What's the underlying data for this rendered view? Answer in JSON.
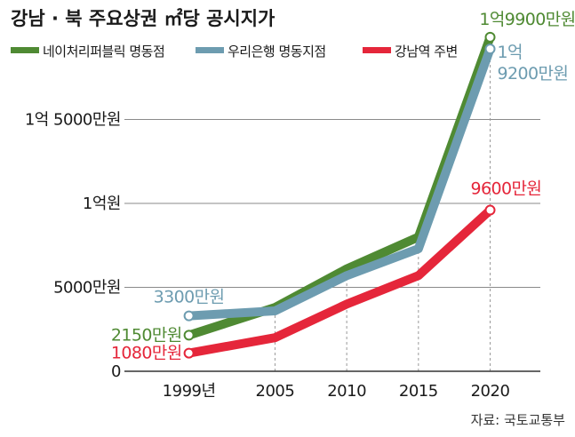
{
  "chart_data": {
    "type": "line",
    "title": "강남 · 북 주요상권 ㎡당 공시지가",
    "x": [
      "1999년",
      "2005",
      "2010",
      "2015",
      "2020"
    ],
    "x_positions": [
      1999,
      2005,
      2010,
      2015,
      2020
    ],
    "xlim": [
      1994.5,
      2023.5
    ],
    "ylim": [
      0,
      20000
    ],
    "yticks": [
      {
        "value": 0,
        "label": "0"
      },
      {
        "value": 5000,
        "label": "5000만원"
      },
      {
        "value": 10000,
        "label": "1억원"
      },
      {
        "value": 15000,
        "label": "1억 5000만원"
      }
    ],
    "grid": true,
    "legend_position": "top-left",
    "series": [
      {
        "name": "네이처리퍼블릭 명동점",
        "color": "#4f8a33",
        "values": [
          2150,
          3800,
          6100,
          8000,
          19900
        ]
      },
      {
        "name": "우리은행 명동지점",
        "color": "#6d9cb0",
        "values": [
          3300,
          3600,
          5700,
          7300,
          19200
        ]
      },
      {
        "name": "강남역 주변",
        "color": "#e5263a",
        "values": [
          1080,
          2000,
          4000,
          5700,
          9600
        ]
      }
    ],
    "annotations": [
      {
        "series": 0,
        "index": 0,
        "text": "2150만원",
        "lines": [
          "2150만원"
        ]
      },
      {
        "series": 1,
        "index": 0,
        "text": "3300만원",
        "lines": [
          "3300만원"
        ]
      },
      {
        "series": 2,
        "index": 0,
        "text": "1080만원",
        "lines": [
          "1080만원"
        ]
      },
      {
        "series": 0,
        "index": 4,
        "text": "1억9900만원",
        "lines": [
          "1억9900만원"
        ]
      },
      {
        "series": 1,
        "index": 4,
        "text": "1억 9200만원",
        "lines": [
          "1억",
          "9200만원"
        ]
      },
      {
        "series": 2,
        "index": 4,
        "text": "9600만원",
        "lines": [
          "9600만원"
        ]
      }
    ],
    "source": "자료: 국토교통부"
  }
}
